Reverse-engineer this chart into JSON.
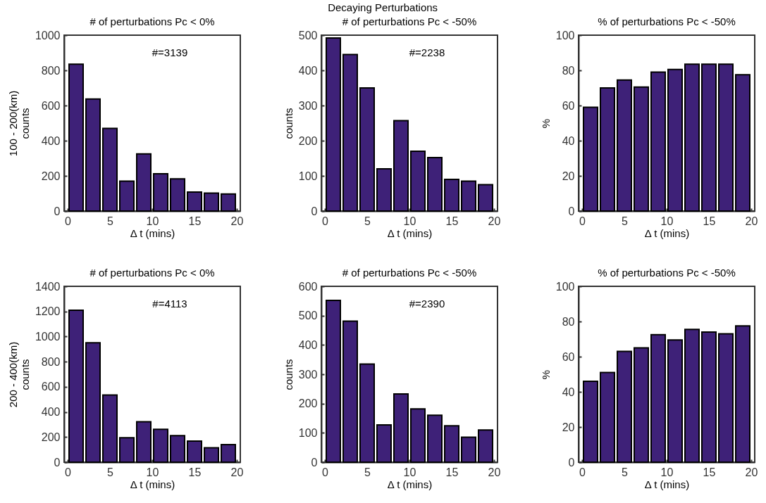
{
  "chart_data": [
    {
      "type": "bar",
      "title": "# of perturbations Pc < 0%",
      "xlabel": "Δ t (mins)",
      "ylabel": "100 - 200(km)\ncounts",
      "annotations": [
        "#=3139"
      ],
      "x": [
        1,
        3,
        5,
        7,
        9,
        11,
        13,
        15,
        17,
        19
      ],
      "values": [
        835,
        637,
        470,
        170,
        325,
        212,
        183,
        108,
        102,
        97
      ],
      "color": "#3e2178",
      "xlim": [
        0,
        20
      ],
      "xticks": [
        0,
        5,
        10,
        15,
        20
      ],
      "ylim": [
        0,
        1000
      ],
      "yticks": [
        0,
        200,
        400,
        600,
        800,
        1000
      ],
      "grid": false
    },
    {
      "type": "bar",
      "title": "Decaying Perturbations",
      "subtitle": "# of perturbations Pc < -50%",
      "xlabel": "Δ t (mins)",
      "ylabel": "counts",
      "annotations": [
        "#=2238"
      ],
      "x": [
        1,
        3,
        5,
        7,
        9,
        11,
        13,
        15,
        17,
        19
      ],
      "values": [
        492,
        445,
        350,
        120,
        257,
        170,
        152,
        90,
        85,
        75
      ],
      "color": "#3e2178",
      "xlim": [
        0,
        20
      ],
      "xticks": [
        0,
        5,
        10,
        15,
        20
      ],
      "ylim": [
        0,
        500
      ],
      "yticks": [
        0,
        100,
        200,
        300,
        400,
        500
      ],
      "grid": false
    },
    {
      "type": "bar",
      "title": "% of perturbations Pc < -50%",
      "xlabel": "Δ t (mins)",
      "ylabel": "%",
      "x": [
        1,
        3,
        5,
        7,
        9,
        11,
        13,
        15,
        17,
        19
      ],
      "values": [
        59,
        70,
        74.5,
        70.5,
        79,
        80.5,
        83.5,
        83.5,
        83.5,
        77.5
      ],
      "color": "#3e2178",
      "xlim": [
        0,
        20
      ],
      "xticks": [
        0,
        5,
        10,
        15,
        20
      ],
      "ylim": [
        0,
        100
      ],
      "yticks": [
        0,
        20,
        40,
        60,
        80,
        100
      ],
      "grid": false
    },
    {
      "type": "bar",
      "title": "# of perturbations Pc < 0%",
      "xlabel": "Δ t (mins)",
      "ylabel": "200 - 400(km)\ncounts",
      "annotations": [
        "#=4113"
      ],
      "x": [
        1,
        3,
        5,
        7,
        9,
        11,
        13,
        15,
        17,
        19
      ],
      "values": [
        1210,
        950,
        535,
        195,
        322,
        262,
        212,
        168,
        115,
        140
      ],
      "color": "#3e2178",
      "xlim": [
        0,
        20
      ],
      "xticks": [
        0,
        5,
        10,
        15,
        20
      ],
      "ylim": [
        0,
        1400
      ],
      "yticks": [
        0,
        200,
        400,
        600,
        800,
        1000,
        1200,
        1400
      ],
      "grid": false
    },
    {
      "type": "bar",
      "title": "# of perturbations Pc < -50%",
      "xlabel": "Δ t (mins)",
      "ylabel": "counts",
      "annotations": [
        "#=2390"
      ],
      "x": [
        1,
        3,
        5,
        7,
        9,
        11,
        13,
        15,
        17,
        19
      ],
      "values": [
        552,
        481,
        335,
        127,
        233,
        182,
        160,
        124,
        85,
        110
      ],
      "color": "#3e2178",
      "xlim": [
        0,
        20
      ],
      "xticks": [
        0,
        5,
        10,
        15,
        20
      ],
      "ylim": [
        0,
        600
      ],
      "yticks": [
        0,
        100,
        200,
        300,
        400,
        500,
        600
      ],
      "grid": false
    },
    {
      "type": "bar",
      "title": "% of perturbations Pc < -50%",
      "xlabel": "Δ t (mins)",
      "ylabel": "%",
      "x": [
        1,
        3,
        5,
        7,
        9,
        11,
        13,
        15,
        17,
        19
      ],
      "values": [
        46,
        51,
        63,
        65,
        72.5,
        69.5,
        75.5,
        74,
        73,
        77.5
      ],
      "color": "#3e2178",
      "xlim": [
        0,
        20
      ],
      "xticks": [
        0,
        5,
        10,
        15,
        20
      ],
      "ylim": [
        0,
        100
      ],
      "yticks": [
        0,
        20,
        40,
        60,
        80,
        100
      ],
      "grid": false
    }
  ]
}
